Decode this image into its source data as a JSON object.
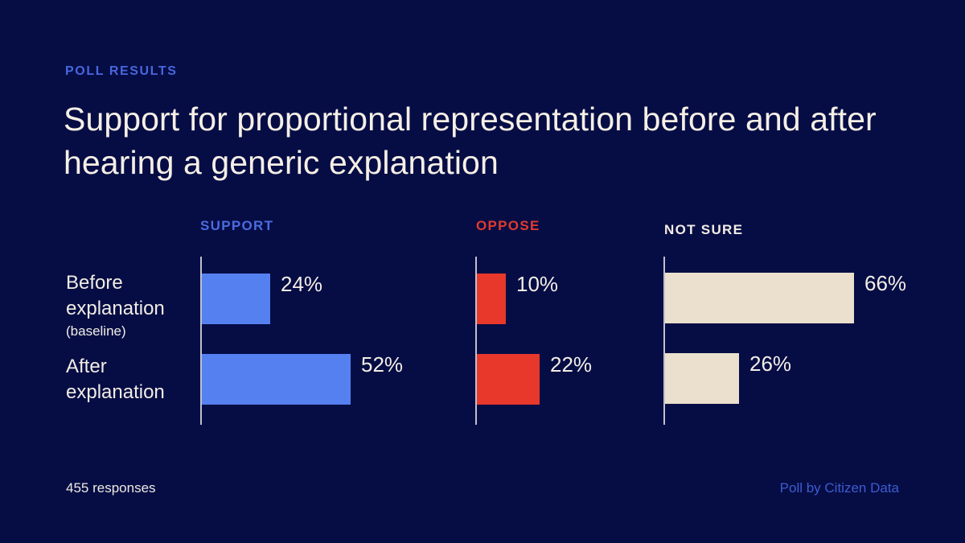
{
  "header": {
    "eyebrow": "POLL RESULTS",
    "title_line1": "Support for proportional representation before and after",
    "title_line2": "hearing a generic explanation"
  },
  "chart_data": {
    "type": "bar",
    "orientation": "horizontal",
    "title": "Support for proportional representation before and after hearing a generic explanation",
    "categories": [
      "Before explanation (baseline)",
      "After explanation"
    ],
    "row_labels": [
      {
        "label": "Before explanation",
        "sublabel": "(baseline)"
      },
      {
        "label": "After explanation",
        "sublabel": ""
      }
    ],
    "series": [
      {
        "name": "SUPPORT",
        "header_color": "#4A6CE0",
        "color": "#5580F0",
        "values": [
          24,
          52
        ],
        "labels": [
          "24%",
          "52%"
        ]
      },
      {
        "name": "OPPOSE",
        "header_color": "#E13A2D",
        "color": "#E7382B",
        "values": [
          10,
          22
        ],
        "labels": [
          "10%",
          "22%"
        ]
      },
      {
        "name": "NOT SURE",
        "header_color": "#F2EDE4",
        "color": "#EBDFCE",
        "values": [
          66,
          26
        ],
        "labels": [
          "66%",
          "26%"
        ]
      }
    ],
    "value_unit": "%",
    "xlim": [
      0,
      100
    ],
    "grid": false,
    "legend_position": "column-headers"
  },
  "footer": {
    "responses": "455 responses",
    "source": "Poll by Citizen Data"
  },
  "colors": {
    "background": "#060D45",
    "title": "#F5EFE5",
    "axis": "#BEC1CC"
  }
}
